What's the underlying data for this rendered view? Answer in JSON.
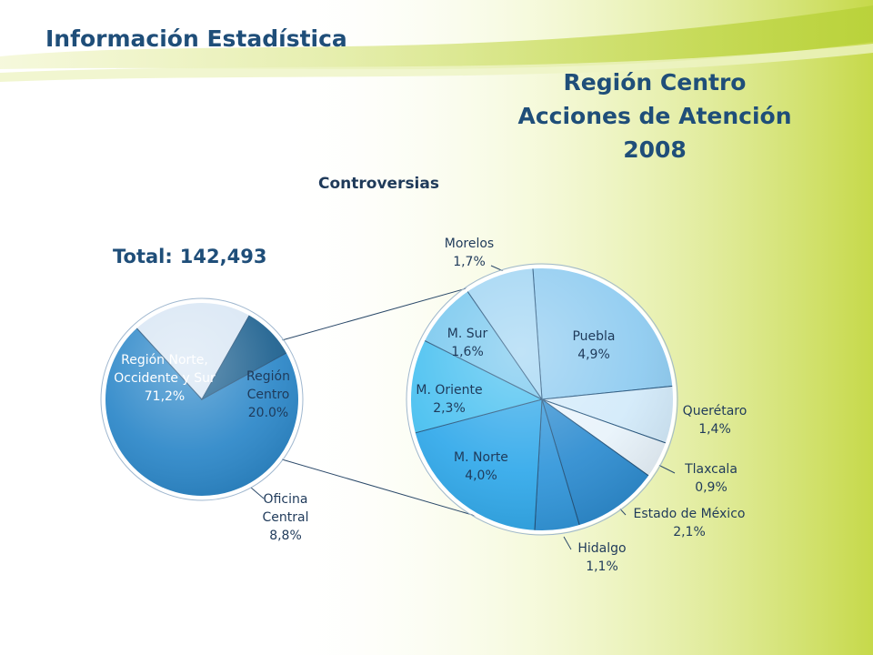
{
  "header": {
    "title": "Información Estadística"
  },
  "main_title": {
    "line1": "Región Centro",
    "line2": "Acciones de Atención",
    "line3": "2008"
  },
  "subtitle": "Controversias",
  "total": {
    "label": "Total:",
    "value": "142,493"
  },
  "colors": {
    "title": "#1f4e79",
    "background_green": "#c9dc4a",
    "pie_blue": "#2a86c8",
    "pie_dark": "#1b5f8e",
    "pie_light": "#d8e6f4",
    "leader_line": "#2c4a6a"
  },
  "chart_data": [
    {
      "type": "pie",
      "title": "",
      "slices": [
        {
          "label_lines": [
            "Región Norte,",
            "Occidente y Sur"
          ],
          "value_text": "71,2%",
          "value": 71.2,
          "color": "#2a86c8"
        },
        {
          "label_lines": [
            "Región",
            "Centro"
          ],
          "value_text": "20.0%",
          "value": 20.0,
          "color": "#d8e6f4"
        },
        {
          "label_lines": [
            "Oficina",
            "Central"
          ],
          "value_text": "8,8%",
          "value": 8.8,
          "color": "#1b5f8e"
        }
      ]
    },
    {
      "type": "pie",
      "title": "",
      "slices": [
        {
          "label_lines": [
            "Puebla"
          ],
          "value_text": "4,9%",
          "value": 4.9,
          "color": "#8ccaf0"
        },
        {
          "label_lines": [
            "Querétaro"
          ],
          "value_text": "1,4%",
          "value": 1.4,
          "color": "#d2eafa"
        },
        {
          "label_lines": [
            "Tlaxcala"
          ],
          "value_text": "0,9%",
          "value": 0.9,
          "color": "#e8f3fb"
        },
        {
          "label_lines": [
            "Estado de México"
          ],
          "value_text": "2,1%",
          "value": 2.1,
          "color": "#2b8bd0"
        },
        {
          "label_lines": [
            "Hidalgo"
          ],
          "value_text": "1,1%",
          "value": 1.1,
          "color": "#2f95da"
        },
        {
          "label_lines": [
            "M. Norte"
          ],
          "value_text": "4,0%",
          "value": 4.0,
          "color": "#2fa8ea"
        },
        {
          "label_lines": [
            "M. Oriente"
          ],
          "value_text": "2,3%",
          "value": 2.3,
          "color": "#45bff0"
        },
        {
          "label_lines": [
            "M. Sur"
          ],
          "value_text": "1,6%",
          "value": 1.6,
          "color": "#74c6ee"
        },
        {
          "label_lines": [
            "Morelos"
          ],
          "value_text": "1,7%",
          "value": 1.7,
          "color": "#9fd4f3"
        }
      ]
    }
  ]
}
